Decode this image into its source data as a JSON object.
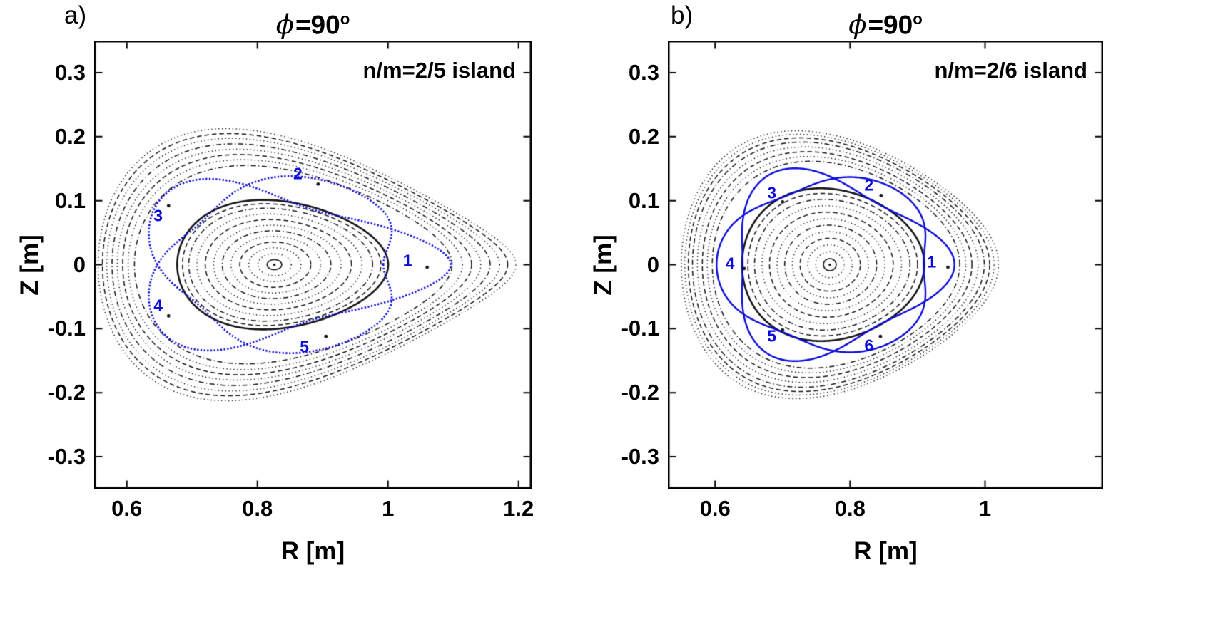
{
  "chart_data": [
    {
      "type": "line",
      "plot_kind": "poincare-section-flux-surfaces",
      "panel_label": "a)",
      "title": {
        "symbol": "ϕ",
        "text": "=90",
        "sup": "o"
      },
      "annotation": "n/m=2/5 island",
      "xlabel": "R [m]",
      "ylabel": "Z [m]",
      "xlim": [
        0.55,
        1.22
      ],
      "ylim": [
        -0.35,
        0.35
      ],
      "xticks": [
        {
          "v": 0.6,
          "label": "0.6"
        },
        {
          "v": 0.8,
          "label": "0.8"
        },
        {
          "v": 1.0,
          "label": "1"
        },
        {
          "v": 1.2,
          "label": "1.2"
        }
      ],
      "yticks": [
        {
          "v": 0.3,
          "label": "0.3"
        },
        {
          "v": 0.2,
          "label": "0.2"
        },
        {
          "v": 0.1,
          "label": "0.1"
        },
        {
          "v": 0.0,
          "label": "0"
        },
        {
          "v": -0.1,
          "label": "-0.1"
        },
        {
          "v": -0.2,
          "label": "-0.2"
        },
        {
          "v": -0.3,
          "label": "-0.3"
        }
      ],
      "colors": {
        "frame": "#000000",
        "contour": "#151515",
        "island": "#0b0bdd"
      },
      "magnetic_axis": [
        0.826,
        0.0
      ],
      "shape": {
        "R0": 0.826,
        "R0_shift": 0.05,
        "a_max": 0.32,
        "b_max": 0.19,
        "b_exp": 0.95,
        "point_max": 0.55
      },
      "surfaces": [
        {
          "f": 0.035,
          "style": "solid"
        },
        {
          "f": 0.08,
          "style": "dot"
        },
        {
          "f": 0.125,
          "style": "dot"
        },
        {
          "f": 0.17,
          "style": "dash"
        },
        {
          "f": 0.215,
          "style": "dot"
        },
        {
          "f": 0.26,
          "style": "dashdot"
        },
        {
          "f": 0.305,
          "style": "dot"
        },
        {
          "f": 0.35,
          "style": "dash"
        },
        {
          "f": 0.395,
          "style": "dot"
        },
        {
          "f": 0.44,
          "style": "dashdot"
        },
        {
          "f": 0.475,
          "style": "dash"
        },
        {
          "f": 0.505,
          "style": "solid",
          "lw": 2.6
        },
        {
          "f": 0.76,
          "style": "dashdot"
        },
        {
          "f": 0.8,
          "style": "dot"
        },
        {
          "f": 0.835,
          "style": "dash"
        },
        {
          "f": 0.87,
          "style": "dot"
        },
        {
          "f": 0.905,
          "style": "dashdot"
        },
        {
          "f": 0.94,
          "style": "dot"
        },
        {
          "f": 0.97,
          "style": "dash"
        },
        {
          "f": 1.0,
          "style": "dot"
        }
      ],
      "island_chain": {
        "m": 5,
        "f0": 0.62,
        "A": 0.135,
        "style": "dense",
        "lw": 2.6
      },
      "islands": [
        {
          "label": "1",
          "label_pos": [
            1.03,
            0.006
          ],
          "dot": [
            1.06,
            -0.004
          ]
        },
        {
          "label": "2",
          "label_pos": [
            0.862,
            0.142
          ],
          "dot": [
            0.893,
            0.126
          ]
        },
        {
          "label": "3",
          "label_pos": [
            0.648,
            0.076
          ],
          "dot": [
            0.664,
            0.092
          ]
        },
        {
          "label": "4",
          "label_pos": [
            0.648,
            -0.064
          ],
          "dot": [
            0.664,
            -0.08
          ]
        },
        {
          "label": "5",
          "label_pos": [
            0.872,
            -0.128
          ],
          "dot": [
            0.905,
            -0.112
          ]
        }
      ]
    },
    {
      "type": "line",
      "plot_kind": "poincare-section-flux-surfaces",
      "panel_label": "b)",
      "title": {
        "symbol": "ϕ",
        "text": "=90",
        "sup": "o"
      },
      "annotation": "n/m=2/6 island",
      "xlabel": "R [m]",
      "ylabel": "Z [m]",
      "xlim": [
        0.53,
        1.175
      ],
      "ylim": [
        -0.35,
        0.35
      ],
      "xticks": [
        {
          "v": 0.6,
          "label": "0.6"
        },
        {
          "v": 0.8,
          "label": "0.8"
        },
        {
          "v": 1.0,
          "label": "1"
        }
      ],
      "yticks": [
        {
          "v": 0.3,
          "label": "0.3"
        },
        {
          "v": 0.2,
          "label": "0.2"
        },
        {
          "v": 0.1,
          "label": "0.1"
        },
        {
          "v": 0.0,
          "label": "0"
        },
        {
          "v": -0.1,
          "label": "-0.1"
        },
        {
          "v": -0.2,
          "label": "-0.2"
        },
        {
          "v": -0.3,
          "label": "-0.3"
        }
      ],
      "colors": {
        "frame": "#000000",
        "contour": "#151515",
        "island": "#0b0bdd"
      },
      "magnetic_axis": [
        0.77,
        0.0
      ],
      "shape": {
        "R0": 0.77,
        "R0_shift": 0.015,
        "a_max": 0.235,
        "b_max": 0.2,
        "b_exp": 0.95,
        "point_max": 0.32
      },
      "surfaces": [
        {
          "f": 0.04,
          "style": "solid"
        },
        {
          "f": 0.09,
          "style": "dot"
        },
        {
          "f": 0.14,
          "style": "dot"
        },
        {
          "f": 0.19,
          "style": "dash"
        },
        {
          "f": 0.24,
          "style": "dot"
        },
        {
          "f": 0.29,
          "style": "dashdot"
        },
        {
          "f": 0.34,
          "style": "dot"
        },
        {
          "f": 0.39,
          "style": "dash"
        },
        {
          "f": 0.44,
          "style": "dot"
        },
        {
          "f": 0.49,
          "style": "dashdot"
        },
        {
          "f": 0.535,
          "style": "dash"
        },
        {
          "f": 0.575,
          "style": "solid",
          "lw": 2.6
        },
        {
          "f": 0.78,
          "style": "dashdot"
        },
        {
          "f": 0.815,
          "style": "dot"
        },
        {
          "f": 0.85,
          "style": "dash"
        },
        {
          "f": 0.885,
          "style": "dot"
        },
        {
          "f": 0.92,
          "style": "dashdot"
        },
        {
          "f": 0.95,
          "style": "dash"
        },
        {
          "f": 0.975,
          "style": "dot"
        },
        {
          "f": 1.0,
          "style": "dot"
        }
      ],
      "island_chain": {
        "m": 6,
        "f0": 0.66,
        "A": 0.09,
        "style": "solid",
        "lw": 2.4
      },
      "islands": [
        {
          "label": "1",
          "label_pos": [
            0.921,
            0.004
          ],
          "dot": [
            0.945,
            -0.004
          ]
        },
        {
          "label": "2",
          "label_pos": [
            0.828,
            0.124
          ],
          "dot": [
            0.846,
            0.108
          ]
        },
        {
          "label": "3",
          "label_pos": [
            0.684,
            0.112
          ],
          "dot": [
            0.7,
            0.098
          ]
        },
        {
          "label": "4",
          "label_pos": [
            0.622,
            0.002
          ],
          "dot": [
            0.643,
            -0.006
          ]
        },
        {
          "label": "5",
          "label_pos": [
            0.684,
            -0.112
          ],
          "dot": [
            0.7,
            -0.102
          ]
        },
        {
          "label": "6",
          "label_pos": [
            0.828,
            -0.126
          ],
          "dot": [
            0.845,
            -0.112
          ]
        }
      ]
    }
  ]
}
